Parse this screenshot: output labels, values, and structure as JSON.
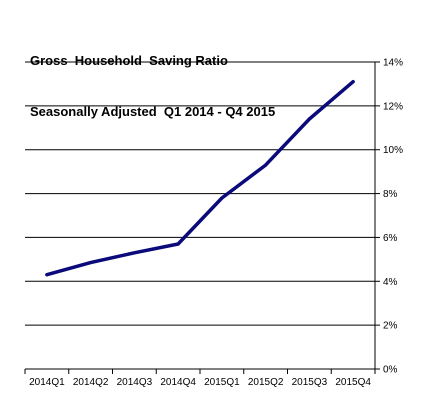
{
  "chart_data": {
    "type": "line",
    "title_line1": "Gross  Household  Saving Ratio",
    "title_line2": "Seasonally Adjusted  Q1 2014 - Q4 2015",
    "categories": [
      "2014Q1",
      "2014Q2",
      "2014Q3",
      "2014Q4",
      "2015Q1",
      "2015Q2",
      "2015Q3",
      "2015Q4"
    ],
    "series": [
      {
        "values": [
          4.3,
          4.85,
          5.3,
          5.7,
          7.8,
          9.3,
          11.4,
          13.1
        ],
        "color": "#0a0a7a"
      }
    ],
    "ylim": [
      0,
      14
    ],
    "yticks": [
      0,
      2,
      4,
      6,
      8,
      10,
      12,
      14
    ],
    "ytick_labels": [
      "0%",
      "2%",
      "4%",
      "6%",
      "8%",
      "10%",
      "12%",
      "14%"
    ],
    "y_axis_position": "right",
    "grid": true,
    "legend": "none"
  }
}
